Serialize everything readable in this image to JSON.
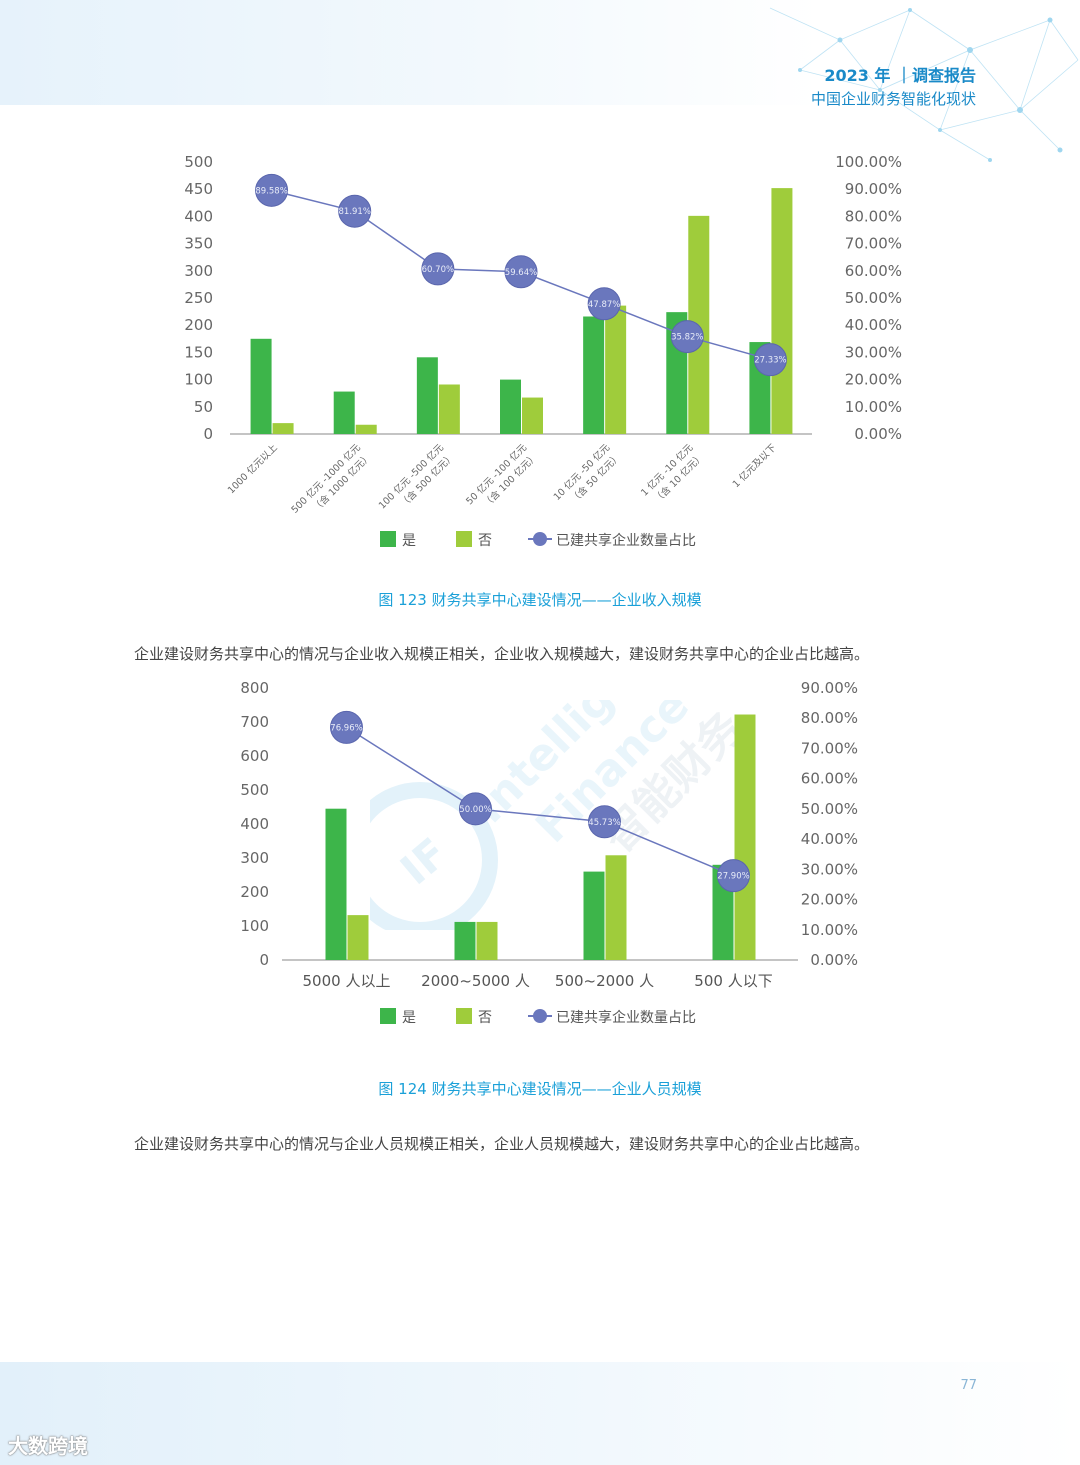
{
  "header": {
    "year_title": "2023 年 ｜调查报告",
    "subtitle": "中国企业财务智能化现状"
  },
  "legend": {
    "yes": "是",
    "no": "否",
    "ratio": "已建共享企业数量占比"
  },
  "charts": [
    {
      "caption": "图 123  财务共享中心建设情况——企业收入规模",
      "paragraph": "企业建设财务共享中心的情况与企业收入规模正相关，企业收入规模越大，建设财务共享中心的企业占比越高。"
    },
    {
      "caption": "图 124   财务共享中心建设情况——企业人员规模",
      "paragraph": "企业建设财务共享中心的情况与企业人员规模正相关，企业人员规模越大，建设财务共享中心的企业占比越高。"
    }
  ],
  "chart_data": [
    {
      "type": "bar",
      "categories": [
        [
          "1000 亿元以上"
        ],
        [
          "500 亿元 -1000 亿元",
          "（含 1000 亿元）"
        ],
        [
          "100 亿元 -500 亿元",
          "（含 500 亿元）"
        ],
        [
          "50 亿元 -100 亿元",
          "（含 100 亿元）"
        ],
        [
          "10 亿元 -50 亿元",
          "（含 50 亿元）"
        ],
        [
          "1 亿元 -10 亿元",
          "（含 10 亿元）"
        ],
        [
          "1 亿元及以下"
        ]
      ],
      "series": [
        {
          "name": "是",
          "values": [
            175,
            78,
            141,
            100,
            216,
            224,
            169
          ],
          "color": "#3db54a"
        },
        {
          "name": "否",
          "values": [
            20,
            17,
            91,
            67,
            236,
            401,
            452
          ],
          "color": "#9fcc3b"
        },
        {
          "name": "已建共享企业数量占比",
          "type": "line",
          "axis": "right",
          "values": [
            89.58,
            81.91,
            60.7,
            59.64,
            47.87,
            35.82,
            27.33
          ],
          "labels": [
            "89.58%",
            "81.91%",
            "60.70%",
            "59.64%",
            "47.87%",
            "35.82%",
            "27.33%"
          ],
          "color": "#6a77bd"
        }
      ],
      "ylim": [
        0,
        500
      ],
      "yticks": [
        "0",
        "50",
        "100",
        "150",
        "200",
        "250",
        "300",
        "350",
        "400",
        "450",
        "500"
      ],
      "y2lim": [
        0,
        100
      ],
      "y2ticks": [
        "0.00%",
        "10.00%",
        "20.00%",
        "30.00%",
        "40.00%",
        "50.00%",
        "60.00%",
        "70.00%",
        "80.00%",
        "90.00%",
        "100.00%"
      ],
      "legend_position": "bottom"
    },
    {
      "type": "bar",
      "categories": [
        [
          "5000 人以上"
        ],
        [
          "2000~5000 人"
        ],
        [
          "500~2000 人"
        ],
        [
          "500 人以下"
        ]
      ],
      "series": [
        {
          "name": "是",
          "values": [
            445,
            112,
            260,
            280
          ],
          "color": "#3db54a"
        },
        {
          "name": "否",
          "values": [
            132,
            112,
            308,
            722
          ],
          "color": "#9fcc3b"
        },
        {
          "name": "已建共享企业数量占比",
          "type": "line",
          "axis": "right",
          "values": [
            76.96,
            50.0,
            45.73,
            27.9
          ],
          "labels": [
            "76.96%",
            "50.00%",
            "45.73%",
            "27.90%"
          ],
          "color": "#6a77bd"
        }
      ],
      "ylim": [
        0,
        800
      ],
      "yticks": [
        "0",
        "100",
        "200",
        "300",
        "400",
        "500",
        "600",
        "700",
        "800"
      ],
      "y2lim": [
        0,
        90
      ],
      "y2ticks": [
        "0.00%",
        "10.00%",
        "20.00%",
        "30.00%",
        "40.00%",
        "50.00%",
        "60.00%",
        "70.00%",
        "80.00%",
        "90.00%"
      ],
      "legend_position": "bottom"
    }
  ],
  "watermark": {
    "line1": "Intelligent",
    "line2": "Finance",
    "line3": "智能财务",
    "badge": "IF"
  },
  "footer": {
    "page_number": "77",
    "brand": "大数跨境"
  }
}
